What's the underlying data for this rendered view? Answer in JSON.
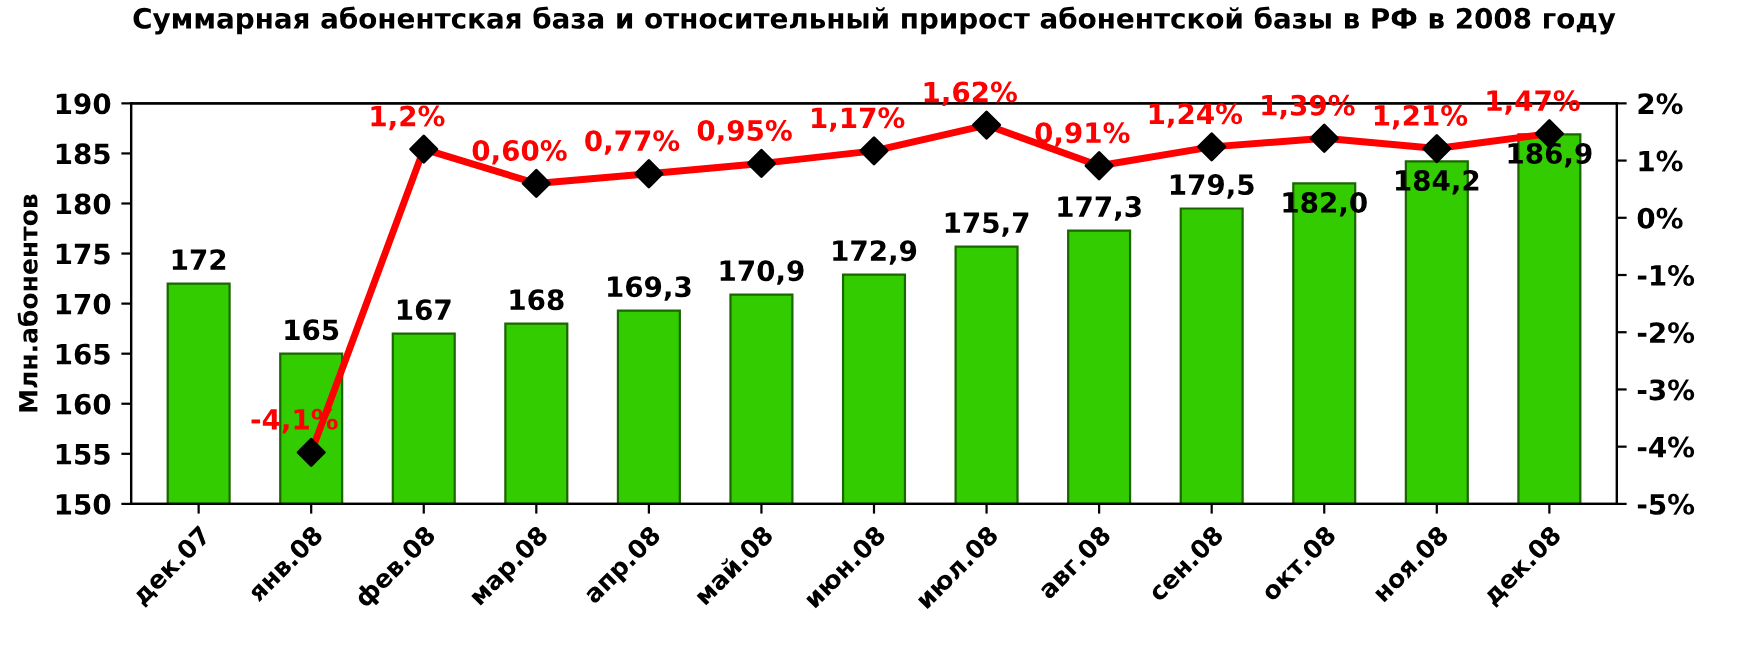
{
  "chart_data": {
    "type": "bar",
    "title": "Суммарная абонентская база и относительный прирост абонентской базы в РФ в 2008 году",
    "ylabel": "Млн.абонентов",
    "categories": [
      "дек.07",
      "янв.08",
      "фев.08",
      "мар.08",
      "апр.08",
      "май.08",
      "июн.08",
      "июл.08",
      "авг.08",
      "сен.08",
      "окт.08",
      "ноя.08",
      "дек.08"
    ],
    "series": [
      {
        "color": "#33cc00",
        "values": [
          172,
          165,
          167,
          168,
          169.3,
          170.9,
          172.9,
          175.7,
          177.3,
          179.5,
          182.0,
          184.2,
          186.9
        ],
        "value_labels": [
          "172",
          "165",
          "167",
          "168",
          "169,3",
          "170,9",
          "172,9",
          "175,7",
          "177,3",
          "179,5",
          "182,0",
          "184,2",
          "186,9"
        ]
      },
      {
        "type": "line",
        "axis": "y2",
        "color": "#ff0000",
        "marker": "diamond",
        "values": [
          null,
          -4.1,
          1.2,
          0.6,
          0.77,
          0.95,
          1.17,
          1.62,
          0.91,
          1.24,
          1.39,
          1.21,
          1.47
        ],
        "value_labels": [
          null,
          "-4,1%",
          "1,2%",
          "0,60%",
          "0,77%",
          "0,95%",
          "1,17%",
          "1,62%",
          "0,91%",
          "1,24%",
          "1,39%",
          "1,21%",
          "1,47%"
        ]
      }
    ],
    "ylim": [
      150,
      190
    ],
    "yticks": [
      150,
      155,
      160,
      165,
      170,
      175,
      180,
      185,
      190
    ],
    "y2lim": [
      -5,
      2
    ],
    "y2ticks": [
      {
        "value": -5,
        "label": "-5%"
      },
      {
        "value": -4,
        "label": "-4%"
      },
      {
        "value": -3,
        "label": "-3%"
      },
      {
        "value": -2,
        "label": "-2%"
      },
      {
        "value": -1,
        "label": "-1%"
      },
      {
        "value": 0,
        "label": "0%"
      },
      {
        "value": 1,
        "label": "1%"
      },
      {
        "value": 2,
        "label": "2%"
      }
    ],
    "grid": false
  }
}
